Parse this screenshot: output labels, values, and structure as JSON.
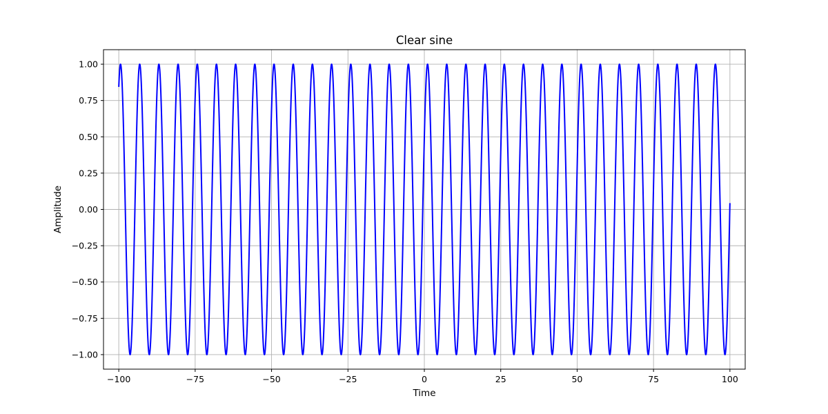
{
  "chart_data": {
    "type": "line",
    "title": "Clear sine",
    "xlabel": "Time",
    "ylabel": "Amplitude",
    "xlim": [
      -105,
      105
    ],
    "ylim": [
      -1.1,
      1.1
    ],
    "xticks": [
      -100,
      -75,
      -50,
      -25,
      0,
      25,
      50,
      75,
      100
    ],
    "xtick_labels": [
      "−100",
      "−75",
      "−50",
      "−25",
      "0",
      "25",
      "50",
      "75",
      "100"
    ],
    "yticks": [
      -1.0,
      -0.75,
      -0.5,
      -0.25,
      0.0,
      0.25,
      0.5,
      0.75,
      1.0
    ],
    "ytick_labels": [
      "−1.00",
      "−0.75",
      "−0.50",
      "−0.25",
      "0.00",
      "0.25",
      "0.50",
      "0.75",
      "1.00"
    ],
    "grid": true,
    "series": [
      {
        "color": "#0000ff",
        "function": "sine",
        "amplitude": 1.0,
        "period": 6.28,
        "phase": 0.5236,
        "x_range": [
          -100,
          100
        ]
      }
    ]
  }
}
